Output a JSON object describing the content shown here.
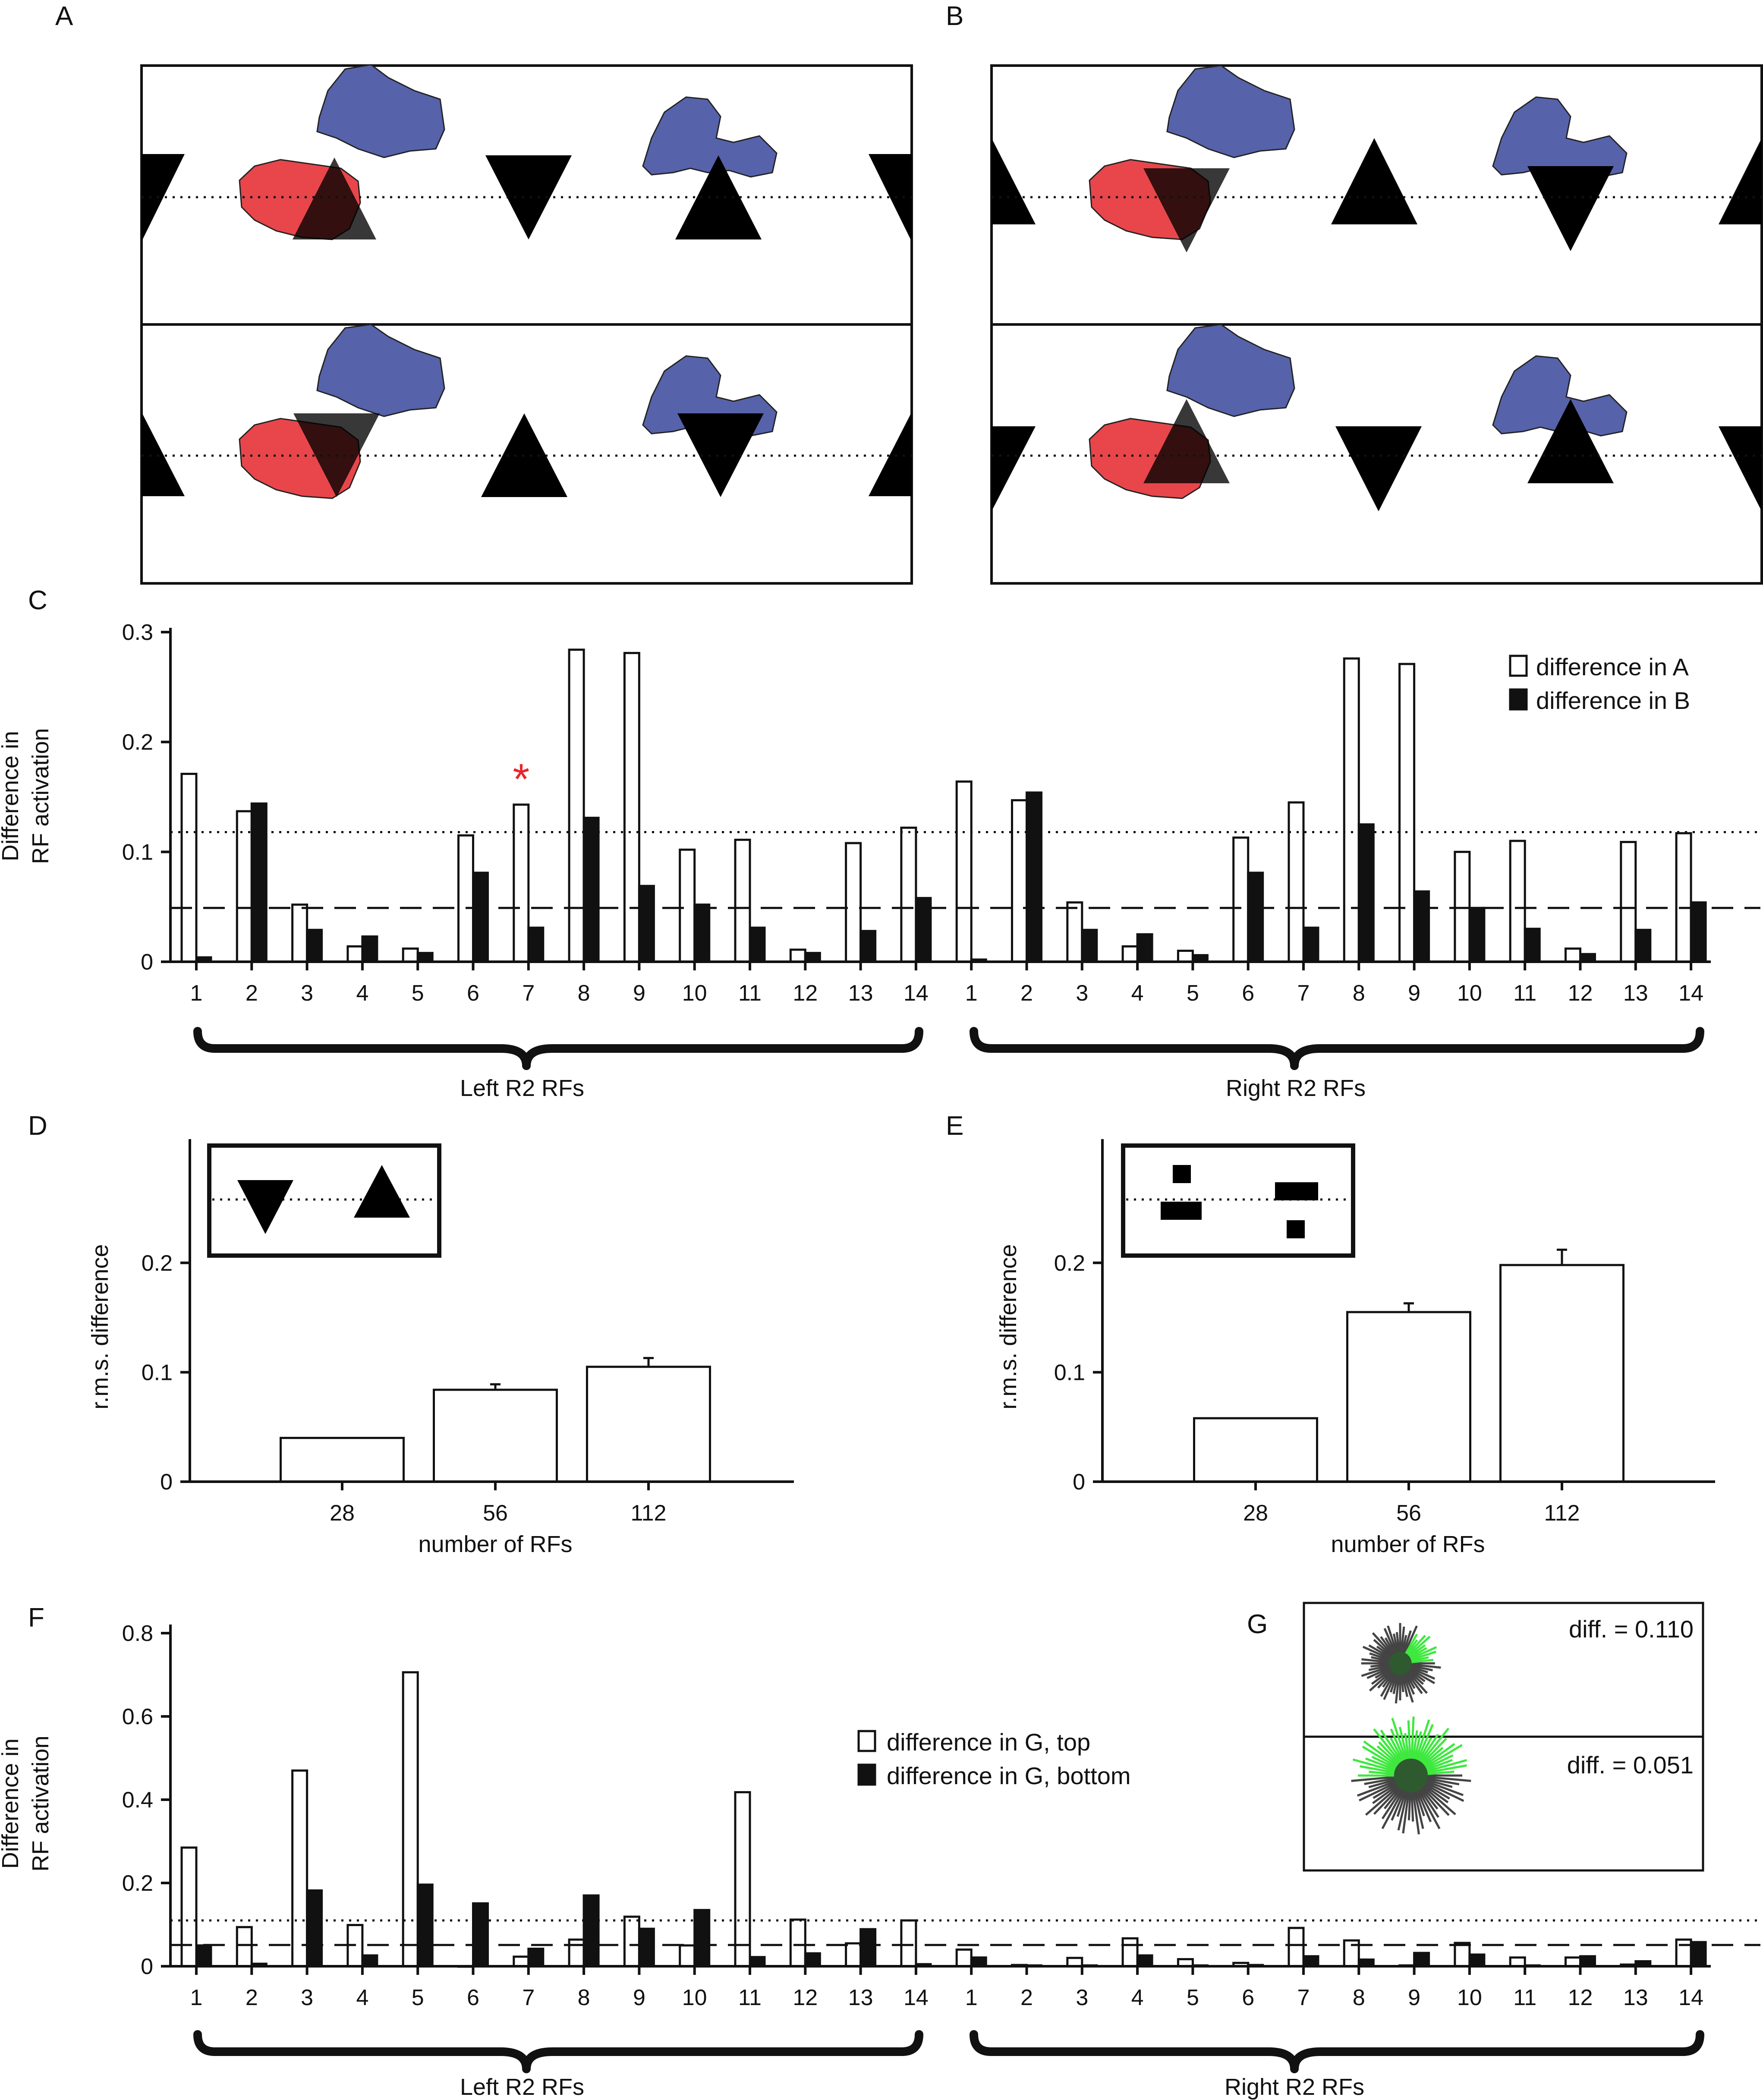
{
  "panels": {
    "A": "A",
    "B": "B",
    "C": "C",
    "D": "D",
    "E": "E",
    "F": "F",
    "G": "G"
  },
  "panel_C": {
    "ylabel_line1": "Difference in",
    "ylabel_line2": "RF activation",
    "yticks": [
      "0",
      "0.1",
      "0.2",
      "0.3"
    ],
    "xticks": [
      "1",
      "2",
      "3",
      "4",
      "5",
      "6",
      "7",
      "8",
      "9",
      "10",
      "11",
      "12",
      "13",
      "14",
      "1",
      "2",
      "3",
      "4",
      "5",
      "6",
      "7",
      "8",
      "9",
      "10",
      "11",
      "12",
      "13",
      "14"
    ],
    "group_left": "Left R2 RFs",
    "group_right": "Right R2 RFs",
    "legend_a": "difference in A",
    "legend_b": "difference in B",
    "marker": "*"
  },
  "panel_D": {
    "ylabel": "r.m.s. difference",
    "yticks": [
      "0",
      "0.1",
      "0.2"
    ],
    "xticks": [
      "28",
      "56",
      "112"
    ],
    "xlabel": "number of RFs"
  },
  "panel_E": {
    "ylabel": "r.m.s. difference",
    "yticks": [
      "0",
      "0.1",
      "0.2"
    ],
    "xticks": [
      "28",
      "56",
      "112"
    ],
    "xlabel": "number of RFs"
  },
  "panel_F": {
    "ylabel_line1": "Difference in",
    "ylabel_line2": "RF activation",
    "yticks": [
      "0",
      "0.2",
      "0.4",
      "0.6",
      "0.8"
    ],
    "xticks": [
      "1",
      "2",
      "3",
      "4",
      "5",
      "6",
      "7",
      "8",
      "9",
      "10",
      "11",
      "12",
      "13",
      "14",
      "1",
      "2",
      "3",
      "4",
      "5",
      "6",
      "7",
      "8",
      "9",
      "10",
      "11",
      "12",
      "13",
      "14"
    ],
    "group_left": "Left R2 RFs",
    "group_right": "Right R2 RFs",
    "legend_top": "difference in G, top",
    "legend_bottom": "difference in G, bottom"
  },
  "panel_G": {
    "top_label": "diff. = 0.110",
    "bottom_label": "diff. = 0.051"
  },
  "chart_data": [
    {
      "panel": "C",
      "type": "bar",
      "categories": [
        "1",
        "2",
        "3",
        "4",
        "5",
        "6",
        "7",
        "8",
        "9",
        "10",
        "11",
        "12",
        "13",
        "14",
        "1",
        "2",
        "3",
        "4",
        "5",
        "6",
        "7",
        "8",
        "9",
        "10",
        "11",
        "12",
        "13",
        "14"
      ],
      "ylim": [
        0,
        0.3
      ],
      "ylabel": "Difference in RF activation",
      "series": [
        {
          "name": "difference in A",
          "values": [
            0.171,
            0.137,
            0.052,
            0.014,
            0.012,
            0.115,
            0.143,
            0.284,
            0.281,
            0.102,
            0.111,
            0.011,
            0.108,
            0.122,
            0.164,
            0.147,
            0.054,
            0.014,
            0.01,
            0.113,
            0.145,
            0.276,
            0.271,
            0.1,
            0.11,
            0.012,
            0.109,
            0.117
          ]
        },
        {
          "name": "difference in B",
          "values": [
            0.004,
            0.144,
            0.029,
            0.023,
            0.008,
            0.081,
            0.031,
            0.131,
            0.069,
            0.052,
            0.031,
            0.008,
            0.028,
            0.058,
            0.002,
            0.154,
            0.029,
            0.025,
            0.006,
            0.081,
            0.031,
            0.125,
            0.064,
            0.049,
            0.03,
            0.007,
            0.029,
            0.054
          ]
        }
      ],
      "reference_lines": {
        "dotted": 0.118,
        "dashed": 0.049
      },
      "groups": [
        "Left R2 RFs",
        "Right R2 RFs"
      ],
      "annotation": {
        "text": "*",
        "category_index": 6
      },
      "legend": "top-right"
    },
    {
      "panel": "D",
      "type": "bar",
      "categories": [
        "28",
        "56",
        "112"
      ],
      "values": [
        0.04,
        0.084,
        0.105
      ],
      "errors": [
        0,
        0.005,
        0.008
      ],
      "ylim": [
        0,
        0.25
      ],
      "xlabel": "number of RFs",
      "ylabel": "r.m.s. difference"
    },
    {
      "panel": "E",
      "type": "bar",
      "categories": [
        "28",
        "56",
        "112"
      ],
      "values": [
        0.058,
        0.155,
        0.198
      ],
      "errors": [
        0,
        0.008,
        0.014
      ],
      "ylim": [
        0,
        0.25
      ],
      "xlabel": "number of RFs",
      "ylabel": "r.m.s. difference"
    },
    {
      "panel": "F",
      "type": "bar",
      "categories": [
        "1",
        "2",
        "3",
        "4",
        "5",
        "6",
        "7",
        "8",
        "9",
        "10",
        "11",
        "12",
        "13",
        "14",
        "1",
        "2",
        "3",
        "4",
        "5",
        "6",
        "7",
        "8",
        "9",
        "10",
        "11",
        "12",
        "13",
        "14"
      ],
      "ylim": [
        0,
        0.8
      ],
      "ylabel": "Difference in RF activation",
      "series": [
        {
          "name": "difference in G, top",
          "values": [
            0.285,
            0.094,
            0.47,
            0.099,
            0.706,
            0.0,
            0.023,
            0.064,
            0.119,
            0.05,
            0.418,
            0.112,
            0.055,
            0.11,
            0.04,
            0.003,
            0.02,
            0.067,
            0.017,
            0.008,
            0.092,
            0.062,
            0.002,
            0.056,
            0.021,
            0.021,
            0.004,
            0.064
          ]
        },
        {
          "name": "difference in G, bottom",
          "values": [
            0.05,
            0.006,
            0.182,
            0.026,
            0.196,
            0.151,
            0.042,
            0.17,
            0.09,
            0.135,
            0.022,
            0.031,
            0.089,
            0.005,
            0.021,
            0.002,
            0.002,
            0.026,
            0.002,
            0.003,
            0.024,
            0.016,
            0.032,
            0.028,
            0.002,
            0.024,
            0.012,
            0.058
          ]
        }
      ],
      "reference_lines": {
        "dotted": 0.11,
        "dashed": 0.051
      },
      "groups": [
        "Left R2 RFs",
        "Right R2 RFs"
      ],
      "legend": "top-right"
    }
  ]
}
